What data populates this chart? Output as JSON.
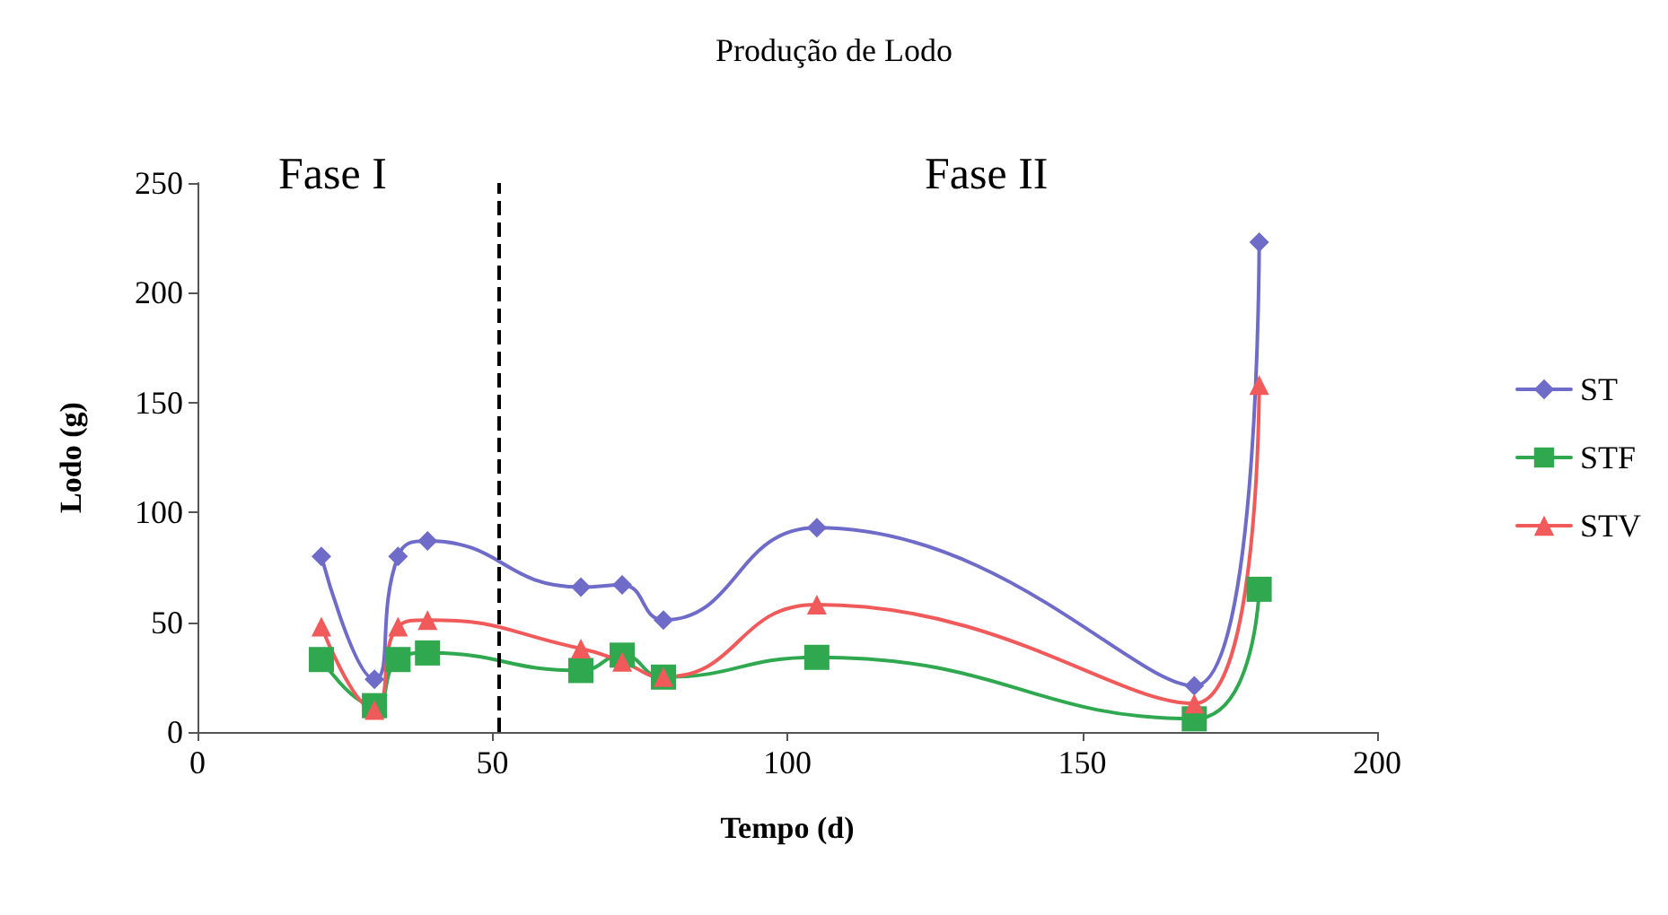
{
  "chart_data": {
    "type": "line",
    "title": "Produção de Lodo",
    "xlabel": "Tempo (d)",
    "ylabel": "Lodo (g)",
    "x": [
      21,
      30,
      34,
      39,
      65,
      72,
      79,
      105,
      169,
      180
    ],
    "series": [
      {
        "name": "ST",
        "color": "#6f6bc9",
        "marker": "diamond",
        "values": [
          80,
          24,
          80,
          87,
          66,
          67,
          51,
          93,
          21,
          223
        ]
      },
      {
        "name": "STF",
        "color": "#2fa84f",
        "marker": "square",
        "values": [
          33,
          12,
          33,
          36,
          28,
          35,
          25,
          34,
          6,
          65
        ]
      },
      {
        "name": "STV",
        "color": "#f05a5a",
        "marker": "triangle",
        "values": [
          48,
          10,
          48,
          51,
          38,
          32,
          25,
          58,
          13,
          158
        ]
      }
    ],
    "xlim": [
      0,
      200
    ],
    "xticks": [
      0,
      50,
      100,
      150,
      200
    ],
    "ylim": [
      0,
      250
    ],
    "yticks": [
      0,
      50,
      100,
      150,
      200,
      250
    ],
    "grid": false,
    "legend": "right",
    "line_style": "solid",
    "ref_lines": [
      {
        "axis": "x",
        "value": 51,
        "color": "#000000",
        "line_style": "dashed"
      }
    ],
    "annotations": [
      "Fase I",
      "Fase II"
    ]
  }
}
